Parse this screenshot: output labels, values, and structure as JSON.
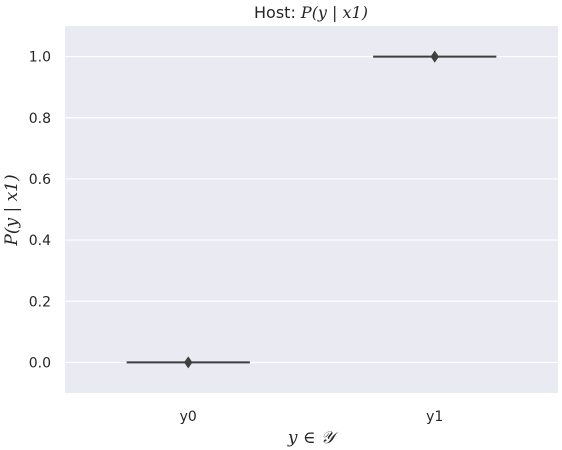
{
  "chart_data": {
    "type": "box",
    "title_prefix": "Host: ",
    "title_math": "P(y | x1)",
    "xlabel": "y ∈ 𝒴",
    "ylabel": "P(y | x1)",
    "categories": [
      "y0",
      "y1"
    ],
    "values": [
      0.0,
      1.0
    ],
    "ylim": [
      -0.1,
      1.1
    ],
    "yticks": [
      0.0,
      0.2,
      0.4,
      0.6,
      0.8,
      1.0
    ],
    "ytick_labels": [
      "0.0",
      "0.2",
      "0.4",
      "0.6",
      "0.8",
      "1.0"
    ],
    "grid": true,
    "colors": {
      "plot_bg": "#eaeaf2",
      "grid": "#ffffff",
      "box_line": "#3f3f3f",
      "marker": "#3f3f3f"
    }
  }
}
